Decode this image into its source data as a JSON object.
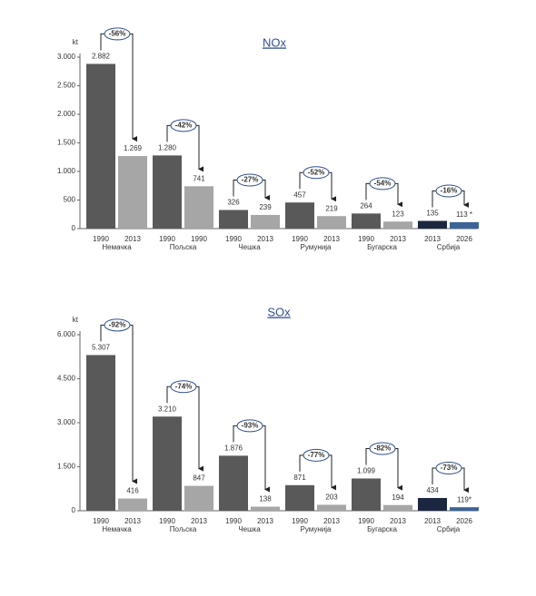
{
  "chart_data": [
    {
      "type": "bar",
      "title": "NOx",
      "y_label": "kt",
      "categories": [
        "1990",
        "2013",
        "1990",
        "1990",
        "1990",
        "2013",
        "1990",
        "2013",
        "1990",
        "2013",
        "2013",
        "2026"
      ],
      "groups": [
        "Немачка",
        "Пољска",
        "Чешка",
        "Румунија",
        "Бугарска",
        "Србија"
      ],
      "values": [
        2882,
        1269,
        1280,
        741,
        326,
        239,
        457,
        219,
        264,
        123,
        135,
        113
      ],
      "value_labels": [
        "2.882",
        "1.269",
        "1.280",
        "741",
        "326",
        "239",
        "457",
        "219",
        "264",
        "123",
        "135",
        "113 *"
      ],
      "annotations": [
        "-56%",
        "-42%",
        "-27%",
        "-52%",
        "-54%",
        "-16%"
      ],
      "colors": [
        "#595959",
        "#a6a6a6",
        "#595959",
        "#a6a6a6",
        "#595959",
        "#a6a6a6",
        "#595959",
        "#a6a6a6",
        "#595959",
        "#a6a6a6",
        "#1c2640",
        "#3c6496"
      ],
      "ylim": [
        0,
        3000
      ],
      "yticks": [
        0,
        500,
        {
          "value": 1000,
          "label": "1.000"
        },
        {
          "value": 1500,
          "label": "1.500"
        },
        {
          "value": 2000,
          "label": "2.000"
        },
        {
          "value": 2500,
          "label": "2.500"
        },
        {
          "value": 3000,
          "label": "3.000"
        }
      ]
    },
    {
      "type": "bar",
      "title": "SOx",
      "y_label": "kt",
      "categories": [
        "1990",
        "2013",
        "1990",
        "2013",
        "1990",
        "2013",
        "1990",
        "2013",
        "1990",
        "2013",
        "2013",
        "2026"
      ],
      "groups": [
        "Немачка",
        "Пољска",
        "Чешка",
        "Румунија",
        "Бугарска",
        "Србија"
      ],
      "values": [
        5307,
        416,
        3210,
        847,
        1876,
        138,
        871,
        203,
        1099,
        194,
        434,
        119
      ],
      "value_labels": [
        "5.307",
        "416",
        "3.210",
        "847",
        "1.876",
        "138",
        "871",
        "203",
        "1.099",
        "194",
        "434",
        "119*"
      ],
      "annotations": [
        "-92%",
        "-74%",
        "-93%",
        "-77%",
        "-82%",
        "-73%"
      ],
      "colors": [
        "#595959",
        "#a6a6a6",
        "#595959",
        "#a6a6a6",
        "#595959",
        "#a6a6a6",
        "#595959",
        "#a6a6a6",
        "#595959",
        "#a6a6a6",
        "#1c2640",
        "#3c6496"
      ],
      "ylim": [
        0,
        6000
      ],
      "yticks": [
        0,
        {
          "value": 1500,
          "label": "1.500"
        },
        {
          "value": 3000,
          "label": "3.000"
        },
        {
          "value": 4500,
          "label": "4.500"
        },
        {
          "value": 6000,
          "label": "6.000"
        }
      ]
    }
  ]
}
